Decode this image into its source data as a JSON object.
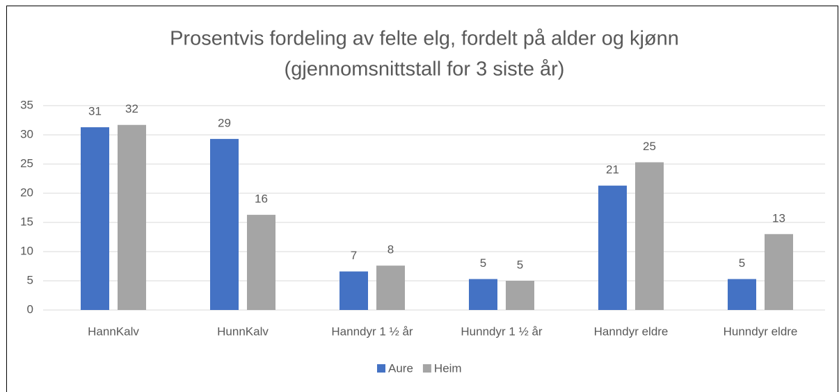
{
  "chart_data": {
    "type": "bar",
    "title": [
      "Prosentvis fordeling av felte elg, fordelt på alder og kjønn",
      "(gjennomsnittstall for 3 siste år)"
    ],
    "categories": [
      "HannKalv",
      "HunnKalv",
      "Hanndyr 1 ½ år",
      "Hunndyr 1 ½ år",
      "Hanndyr eldre",
      "Hunndyr eldre"
    ],
    "series": [
      {
        "name": "Aure",
        "color": "#4472c4",
        "values": [
          31.3,
          29.3,
          6.6,
          5.3,
          21.3,
          5.3
        ],
        "value_labels": [
          "31",
          "29",
          "7",
          "5",
          "21",
          "5"
        ]
      },
      {
        "name": "Heim",
        "color": "#a5a5a5",
        "values": [
          31.7,
          16.3,
          7.6,
          5.0,
          25.3,
          13.0
        ],
        "value_labels": [
          "32",
          "16",
          "8",
          "5",
          "25",
          "13"
        ]
      }
    ],
    "ylim": [
      0,
      35
    ],
    "yticks": [
      0,
      5,
      10,
      15,
      20,
      25,
      30,
      35
    ],
    "grid": true,
    "legend": "bottom"
  }
}
